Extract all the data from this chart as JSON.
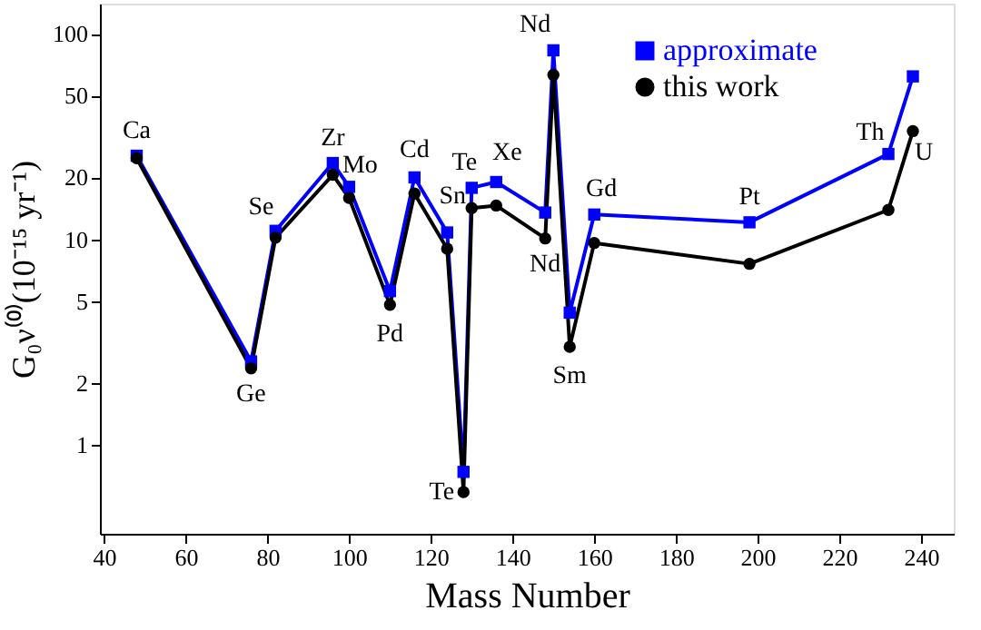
{
  "chart_data": {
    "type": "line",
    "xlabel": "Mass Number",
    "ylabel": "G₀ν⁽⁰⁾(10⁻¹⁵ yr⁻¹)",
    "x": [
      48,
      76,
      82,
      96,
      100,
      110,
      116,
      124,
      128,
      130,
      136,
      148,
      150,
      154,
      160,
      198,
      232,
      238
    ],
    "series": [
      {
        "name": "approximate",
        "color": "#0000ff",
        "marker": "square",
        "values": [
          25.5,
          2.55,
          11,
          23.5,
          18,
          5.6,
          20,
          10.8,
          0.74,
          17.8,
          19,
          13.5,
          83,
          4.4,
          13.2,
          12.1,
          26,
          62
        ]
      },
      {
        "name": "this work",
        "color": "#000000",
        "marker": "circle",
        "values": [
          24.8,
          2.36,
          10.2,
          20.6,
          15.9,
          4.8,
          16.7,
          9.0,
          0.59,
          14.2,
          14.6,
          10.1,
          63,
          3.0,
          9.6,
          7.6,
          13.9,
          33.6
        ]
      }
    ],
    "annotations": [
      {
        "text": "Ca",
        "x": 48,
        "y": 25.5
      },
      {
        "text": "Ge",
        "x": 76,
        "y": 2.36
      },
      {
        "text": "Se",
        "x": 82,
        "y": 11
      },
      {
        "text": "Zr",
        "x": 96,
        "y": 23.5
      },
      {
        "text": "Mo",
        "x": 100,
        "y": 18
      },
      {
        "text": "Pd",
        "x": 110,
        "y": 4.8
      },
      {
        "text": "Cd",
        "x": 116,
        "y": 20
      },
      {
        "text": "Sn",
        "x": 124,
        "y": 10.8
      },
      {
        "text": "Te",
        "x": 128,
        "y": 0.59
      },
      {
        "text": "Te",
        "x": 130,
        "y": 17.8
      },
      {
        "text": "Xe",
        "x": 136,
        "y": 19
      },
      {
        "text": "Nd",
        "x": 148,
        "y": 10.1
      },
      {
        "text": "Nd",
        "x": 150,
        "y": 83
      },
      {
        "text": "Sm",
        "x": 154,
        "y": 3.0
      },
      {
        "text": "Gd",
        "x": 160,
        "y": 13.2
      },
      {
        "text": "Pt",
        "x": 198,
        "y": 12.1
      },
      {
        "text": "Th",
        "x": 232,
        "y": 26
      },
      {
        "text": "U",
        "x": 238,
        "y": 33.6
      }
    ],
    "xlim": [
      39,
      248
    ],
    "xticks": [
      40,
      60,
      80,
      100,
      120,
      140,
      160,
      180,
      200,
      220,
      240
    ],
    "ylim": [
      0.37,
      140
    ],
    "yticks": [
      1,
      2,
      5,
      10,
      20,
      50,
      100
    ],
    "log": "y",
    "grid": false,
    "legend": "top right",
    "line_style": "solid"
  }
}
